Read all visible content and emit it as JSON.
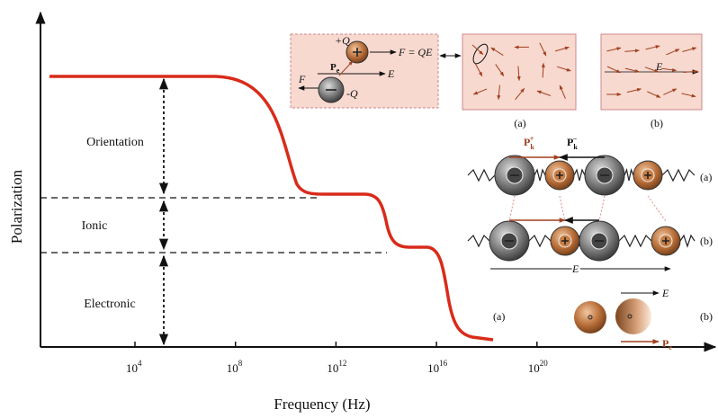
{
  "axes": {
    "y_label": "Polarization",
    "x_label": "Frequency (Hz)",
    "x_ticks": [
      {
        "base": "10",
        "exp": "4"
      },
      {
        "base": "10",
        "exp": "8"
      },
      {
        "base": "10",
        "exp": "12"
      },
      {
        "base": "10",
        "exp": "16"
      },
      {
        "base": "10",
        "exp": "20"
      }
    ]
  },
  "regions": [
    "Orientation",
    "Ionic",
    "Electronic"
  ],
  "inset_charge": {
    "plus_q": "+Q",
    "force_eq": "F = QE",
    "p": "P",
    "p_sub": "e",
    "e": "E",
    "f": "F",
    "minus_q": "-Q"
  },
  "inset_a": {
    "label": "(a)"
  },
  "inset_b": {
    "label": "(b)",
    "field": "E"
  },
  "ionic": {
    "pk_plus": {
      "base": "P",
      "sub": "k",
      "sup": "+"
    },
    "pk_minus": {
      "base": "P",
      "sub": "k",
      "sup": "−"
    },
    "label_a": "(a)",
    "label_b": "(b)",
    "field": "E"
  },
  "electronic": {
    "label_a": "(a)",
    "label_b": "(b)",
    "field": "E",
    "pe": {
      "base": "P",
      "sub": "e"
    }
  }
}
